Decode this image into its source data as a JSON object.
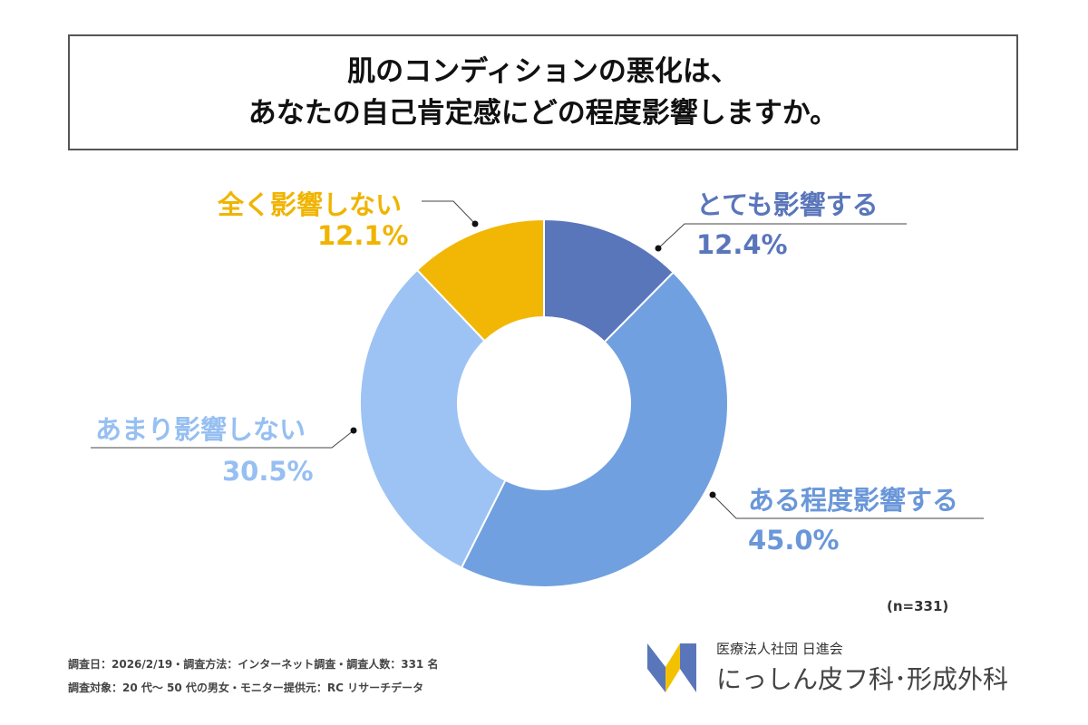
{
  "title": {
    "line1": "肌のコンディションの悪化は、",
    "line2": "あなたの自己肯定感にどの程度影響しますか。"
  },
  "chart_data": {
    "type": "pie",
    "donut": true,
    "title": "肌のコンディションの悪化は、あなたの自己肯定感にどの程度影響しますか。",
    "categories": [
      "とても影響する",
      "ある程度影響する",
      "あまり影響しない",
      "全く影響しない"
    ],
    "values": [
      12.4,
      45.0,
      30.5,
      12.1
    ],
    "labels": [
      "12.4%",
      "45.0%",
      "30.5%",
      "12.1%"
    ],
    "colors": [
      "#5a76bb",
      "#71a0e0",
      "#9dc3f4",
      "#f2b705"
    ],
    "label_colors": [
      "#5a76bb",
      "#6a97d9",
      "#96bff2",
      "#f0b400"
    ],
    "legend": "none"
  },
  "sample_size": "(n=331)",
  "footer": {
    "line1": "調査日：2026/2/19・調査方法：インターネット調査・調査人数：331 名",
    "line2": "調査対象：20 代～ 50 代の男女・モニター提供元：RC リサーチデータ"
  },
  "logo": {
    "org": "医療法人社団 日進会",
    "name": "にっしん皮フ科･形成外科"
  }
}
